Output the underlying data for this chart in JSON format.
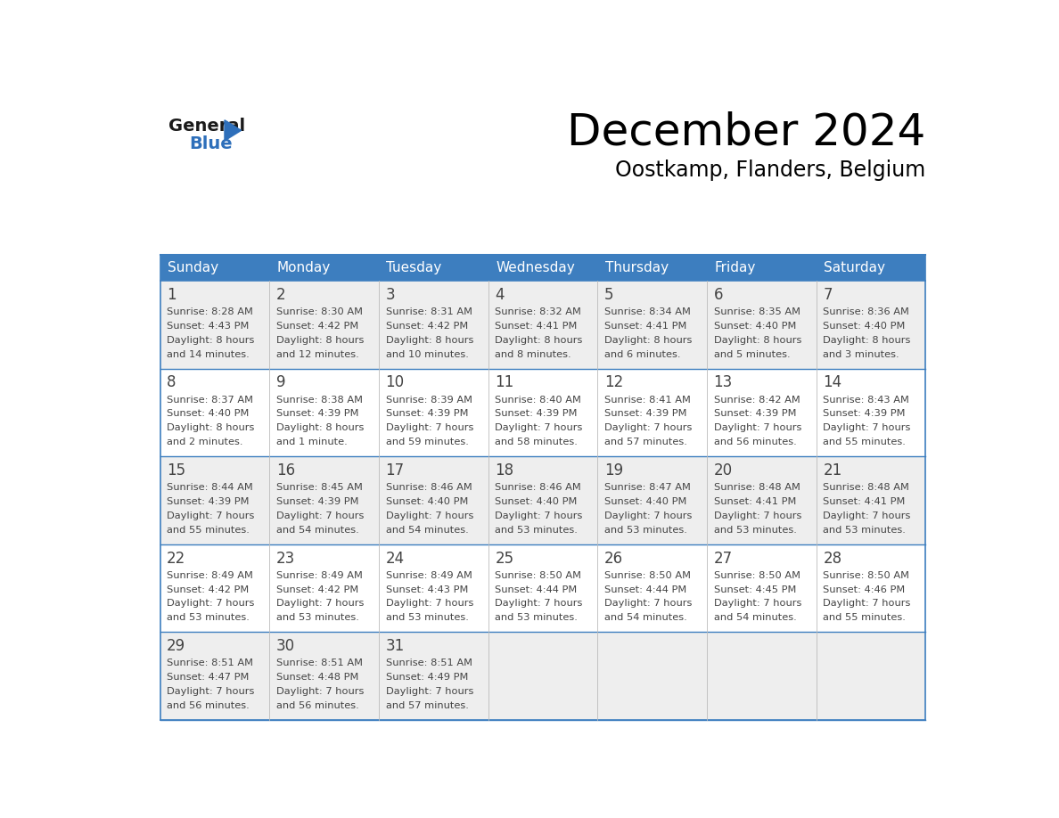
{
  "title": "December 2024",
  "subtitle": "Oostkamp, Flanders, Belgium",
  "header_color": "#3d7ebf",
  "header_text_color": "#ffffff",
  "day_names": [
    "Sunday",
    "Monday",
    "Tuesday",
    "Wednesday",
    "Thursday",
    "Friday",
    "Saturday"
  ],
  "row_bg_colors": [
    "#eeeeee",
    "#ffffff"
  ],
  "border_color": "#3d7ebf",
  "cell_border_color": "#bbbbbb",
  "text_color": "#444444",
  "days": [
    {
      "day": 1,
      "col": 0,
      "row": 0,
      "sunrise": "8:28 AM",
      "sunset": "4:43 PM",
      "daylight": "8 hours and 14 minutes."
    },
    {
      "day": 2,
      "col": 1,
      "row": 0,
      "sunrise": "8:30 AM",
      "sunset": "4:42 PM",
      "daylight": "8 hours and 12 minutes."
    },
    {
      "day": 3,
      "col": 2,
      "row": 0,
      "sunrise": "8:31 AM",
      "sunset": "4:42 PM",
      "daylight": "8 hours and 10 minutes."
    },
    {
      "day": 4,
      "col": 3,
      "row": 0,
      "sunrise": "8:32 AM",
      "sunset": "4:41 PM",
      "daylight": "8 hours and 8 minutes."
    },
    {
      "day": 5,
      "col": 4,
      "row": 0,
      "sunrise": "8:34 AM",
      "sunset": "4:41 PM",
      "daylight": "8 hours and 6 minutes."
    },
    {
      "day": 6,
      "col": 5,
      "row": 0,
      "sunrise": "8:35 AM",
      "sunset": "4:40 PM",
      "daylight": "8 hours and 5 minutes."
    },
    {
      "day": 7,
      "col": 6,
      "row": 0,
      "sunrise": "8:36 AM",
      "sunset": "4:40 PM",
      "daylight": "8 hours and 3 minutes."
    },
    {
      "day": 8,
      "col": 0,
      "row": 1,
      "sunrise": "8:37 AM",
      "sunset": "4:40 PM",
      "daylight": "8 hours and 2 minutes."
    },
    {
      "day": 9,
      "col": 1,
      "row": 1,
      "sunrise": "8:38 AM",
      "sunset": "4:39 PM",
      "daylight": "8 hours and 1 minute."
    },
    {
      "day": 10,
      "col": 2,
      "row": 1,
      "sunrise": "8:39 AM",
      "sunset": "4:39 PM",
      "daylight": "7 hours and 59 minutes."
    },
    {
      "day": 11,
      "col": 3,
      "row": 1,
      "sunrise": "8:40 AM",
      "sunset": "4:39 PM",
      "daylight": "7 hours and 58 minutes."
    },
    {
      "day": 12,
      "col": 4,
      "row": 1,
      "sunrise": "8:41 AM",
      "sunset": "4:39 PM",
      "daylight": "7 hours and 57 minutes."
    },
    {
      "day": 13,
      "col": 5,
      "row": 1,
      "sunrise": "8:42 AM",
      "sunset": "4:39 PM",
      "daylight": "7 hours and 56 minutes."
    },
    {
      "day": 14,
      "col": 6,
      "row": 1,
      "sunrise": "8:43 AM",
      "sunset": "4:39 PM",
      "daylight": "7 hours and 55 minutes."
    },
    {
      "day": 15,
      "col": 0,
      "row": 2,
      "sunrise": "8:44 AM",
      "sunset": "4:39 PM",
      "daylight": "7 hours and 55 minutes."
    },
    {
      "day": 16,
      "col": 1,
      "row": 2,
      "sunrise": "8:45 AM",
      "sunset": "4:39 PM",
      "daylight": "7 hours and 54 minutes."
    },
    {
      "day": 17,
      "col": 2,
      "row": 2,
      "sunrise": "8:46 AM",
      "sunset": "4:40 PM",
      "daylight": "7 hours and 54 minutes."
    },
    {
      "day": 18,
      "col": 3,
      "row": 2,
      "sunrise": "8:46 AM",
      "sunset": "4:40 PM",
      "daylight": "7 hours and 53 minutes."
    },
    {
      "day": 19,
      "col": 4,
      "row": 2,
      "sunrise": "8:47 AM",
      "sunset": "4:40 PM",
      "daylight": "7 hours and 53 minutes."
    },
    {
      "day": 20,
      "col": 5,
      "row": 2,
      "sunrise": "8:48 AM",
      "sunset": "4:41 PM",
      "daylight": "7 hours and 53 minutes."
    },
    {
      "day": 21,
      "col": 6,
      "row": 2,
      "sunrise": "8:48 AM",
      "sunset": "4:41 PM",
      "daylight": "7 hours and 53 minutes."
    },
    {
      "day": 22,
      "col": 0,
      "row": 3,
      "sunrise": "8:49 AM",
      "sunset": "4:42 PM",
      "daylight": "7 hours and 53 minutes."
    },
    {
      "day": 23,
      "col": 1,
      "row": 3,
      "sunrise": "8:49 AM",
      "sunset": "4:42 PM",
      "daylight": "7 hours and 53 minutes."
    },
    {
      "day": 24,
      "col": 2,
      "row": 3,
      "sunrise": "8:49 AM",
      "sunset": "4:43 PM",
      "daylight": "7 hours and 53 minutes."
    },
    {
      "day": 25,
      "col": 3,
      "row": 3,
      "sunrise": "8:50 AM",
      "sunset": "4:44 PM",
      "daylight": "7 hours and 53 minutes."
    },
    {
      "day": 26,
      "col": 4,
      "row": 3,
      "sunrise": "8:50 AM",
      "sunset": "4:44 PM",
      "daylight": "7 hours and 54 minutes."
    },
    {
      "day": 27,
      "col": 5,
      "row": 3,
      "sunrise": "8:50 AM",
      "sunset": "4:45 PM",
      "daylight": "7 hours and 54 minutes."
    },
    {
      "day": 28,
      "col": 6,
      "row": 3,
      "sunrise": "8:50 AM",
      "sunset": "4:46 PM",
      "daylight": "7 hours and 55 minutes."
    },
    {
      "day": 29,
      "col": 0,
      "row": 4,
      "sunrise": "8:51 AM",
      "sunset": "4:47 PM",
      "daylight": "7 hours and 56 minutes."
    },
    {
      "day": 30,
      "col": 1,
      "row": 4,
      "sunrise": "8:51 AM",
      "sunset": "4:48 PM",
      "daylight": "7 hours and 56 minutes."
    },
    {
      "day": 31,
      "col": 2,
      "row": 4,
      "sunrise": "8:51 AM",
      "sunset": "4:49 PM",
      "daylight": "7 hours and 57 minutes."
    }
  ],
  "logo_general_color": "#1a1a1a",
  "logo_blue_color": "#2e6fba",
  "title_fontsize": 36,
  "subtitle_fontsize": 17,
  "header_fontsize": 11,
  "day_num_fontsize": 12,
  "cell_text_fontsize": 8.2
}
